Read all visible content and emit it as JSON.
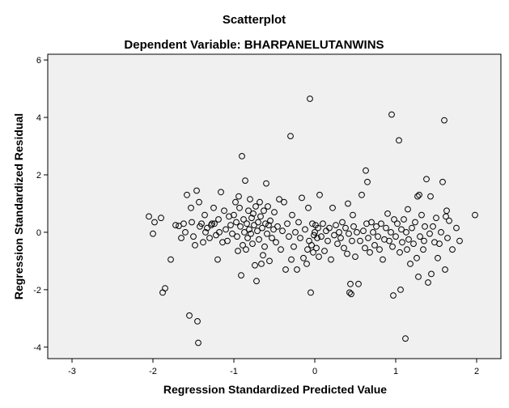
{
  "chart_data": {
    "type": "scatter",
    "title": "Scatterplot",
    "subtitle": "Dependent Variable: BHARPANELUTANWINS",
    "xlabel": "Regression Standardized Predicted Value",
    "ylabel": "Regression Standardized Residual",
    "xlim": [
      -3.3,
      2.3
    ],
    "ylim": [
      -4.4,
      6.2
    ],
    "xticks": [
      -3,
      -2,
      -1,
      0,
      1,
      2
    ],
    "yticks": [
      -4,
      -2,
      0,
      2,
      4,
      6
    ],
    "grid": false,
    "legend": "none",
    "colors": {
      "plot_background": "#f0f0f0",
      "plot_border": "#000000",
      "marker_stroke": "#000000"
    },
    "points": [
      [
        -2.05,
        0.55
      ],
      [
        -2.0,
        -0.05
      ],
      [
        -1.98,
        0.35
      ],
      [
        -1.9,
        0.5
      ],
      [
        -1.88,
        -2.1
      ],
      [
        -1.85,
        -1.95
      ],
      [
        -1.78,
        -0.95
      ],
      [
        -1.72,
        0.25
      ],
      [
        -1.68,
        0.22
      ],
      [
        -1.65,
        -0.2
      ],
      [
        -1.62,
        0.3
      ],
      [
        -1.6,
        0.0
      ],
      [
        -1.58,
        1.3
      ],
      [
        -1.55,
        -2.9
      ],
      [
        -1.53,
        0.85
      ],
      [
        -1.52,
        0.35
      ],
      [
        -1.5,
        -0.15
      ],
      [
        -1.48,
        -0.45
      ],
      [
        -1.46,
        1.45
      ],
      [
        -1.45,
        -3.1
      ],
      [
        -1.44,
        -3.85
      ],
      [
        -1.43,
        1.05
      ],
      [
        -1.42,
        0.2
      ],
      [
        -1.4,
        0.3
      ],
      [
        -1.38,
        -0.35
      ],
      [
        -1.36,
        0.6
      ],
      [
        -1.35,
        0.0
      ],
      [
        -1.33,
        0.15
      ],
      [
        -1.3,
        -0.2
      ],
      [
        -1.28,
        0.25
      ],
      [
        -1.27,
        0.3
      ],
      [
        -1.25,
        0.85
      ],
      [
        -1.24,
        0.3
      ],
      [
        -1.22,
        -0.1
      ],
      [
        -1.2,
        -0.95
      ],
      [
        -1.19,
        0.45
      ],
      [
        -1.18,
        0.0
      ],
      [
        -1.16,
        1.4
      ],
      [
        -1.14,
        -0.35
      ],
      [
        -1.12,
        0.75
      ],
      [
        -1.1,
        0.1
      ],
      [
        -1.08,
        -0.3
      ],
      [
        -1.06,
        0.55
      ],
      [
        -1.04,
        0.25
      ],
      [
        -1.02,
        -0.05
      ],
      [
        -1.0,
        0.6
      ],
      [
        -0.98,
        1.05
      ],
      [
        -0.97,
        0.35
      ],
      [
        -0.96,
        -0.15
      ],
      [
        -0.95,
        -0.65
      ],
      [
        -0.94,
        1.25
      ],
      [
        -0.93,
        0.85
      ],
      [
        -0.92,
        0.2
      ],
      [
        -0.91,
        -1.5
      ],
      [
        -0.9,
        2.65
      ],
      [
        -0.89,
        -0.45
      ],
      [
        -0.88,
        0.45
      ],
      [
        -0.87,
        0.0
      ],
      [
        -0.86,
        1.8
      ],
      [
        -0.85,
        -0.6
      ],
      [
        -0.84,
        0.3
      ],
      [
        -0.83,
        -0.2
      ],
      [
        -0.82,
        0.75
      ],
      [
        -0.81,
        0.1
      ],
      [
        -0.8,
        1.15
      ],
      [
        -0.79,
        -0.05
      ],
      [
        -0.78,
        0.5
      ],
      [
        -0.77,
        -0.4
      ],
      [
        -0.76,
        0.65
      ],
      [
        -0.75,
        0.25
      ],
      [
        -0.74,
        -1.15
      ],
      [
        -0.73,
        0.9
      ],
      [
        -0.72,
        -1.7
      ],
      [
        -0.71,
        0.05
      ],
      [
        -0.7,
        0.35
      ],
      [
        -0.69,
        -0.25
      ],
      [
        -0.68,
        1.05
      ],
      [
        -0.67,
        0.55
      ],
      [
        -0.66,
        -1.1
      ],
      [
        -0.65,
        0.15
      ],
      [
        -0.64,
        -0.8
      ],
      [
        -0.63,
        0.75
      ],
      [
        -0.62,
        -0.5
      ],
      [
        -0.61,
        0.3
      ],
      [
        -0.6,
        1.7
      ],
      [
        -0.59,
        -0.05
      ],
      [
        -0.58,
        0.9
      ],
      [
        -0.57,
        0.25
      ],
      [
        -0.56,
        -1.0
      ],
      [
        -0.55,
        0.4
      ],
      [
        -0.53,
        -0.2
      ],
      [
        -0.51,
        0.1
      ],
      [
        -0.5,
        0.7
      ],
      [
        -0.48,
        -0.35
      ],
      [
        -0.46,
        0.2
      ],
      [
        -0.44,
        1.15
      ],
      [
        -0.42,
        -0.6
      ],
      [
        -0.4,
        0.05
      ],
      [
        -0.38,
        1.05
      ],
      [
        -0.36,
        -1.3
      ],
      [
        -0.34,
        0.3
      ],
      [
        -0.32,
        -0.15
      ],
      [
        -0.3,
        3.35
      ],
      [
        -0.29,
        -0.95
      ],
      [
        -0.28,
        0.6
      ],
      [
        -0.26,
        -0.5
      ],
      [
        -0.24,
        0.0
      ],
      [
        -0.22,
        -1.3
      ],
      [
        -0.2,
        0.35
      ],
      [
        -0.18,
        -0.2
      ],
      [
        -0.16,
        1.2
      ],
      [
        -0.14,
        -0.9
      ],
      [
        -0.12,
        0.1
      ],
      [
        -0.1,
        -1.1
      ],
      [
        -0.09,
        -0.6
      ],
      [
        -0.08,
        0.85
      ],
      [
        -0.07,
        -0.3
      ],
      [
        -0.06,
        4.65
      ],
      [
        -0.05,
        -2.1
      ],
      [
        -0.04,
        -0.45
      ],
      [
        -0.03,
        0.3
      ],
      [
        -0.02,
        -0.7
      ],
      [
        -0.01,
        -0.1
      ],
      [
        0.0,
        0.0
      ],
      [
        0.01,
        0.25
      ],
      [
        0.02,
        -0.55
      ],
      [
        0.03,
        -0.2
      ],
      [
        0.04,
        0.15
      ],
      [
        0.05,
        -0.85
      ],
      [
        0.06,
        1.3
      ],
      [
        0.08,
        -0.15
      ],
      [
        0.1,
        0.3
      ],
      [
        0.12,
        -0.65
      ],
      [
        0.14,
        0.05
      ],
      [
        0.16,
        -0.3
      ],
      [
        0.18,
        0.15
      ],
      [
        0.2,
        -0.95
      ],
      [
        0.22,
        0.85
      ],
      [
        0.24,
        -0.1
      ],
      [
        0.26,
        0.25
      ],
      [
        0.28,
        -0.4
      ],
      [
        0.3,
        0.0
      ],
      [
        0.32,
        -0.2
      ],
      [
        0.34,
        0.35
      ],
      [
        0.36,
        -0.55
      ],
      [
        0.38,
        0.15
      ],
      [
        0.4,
        -0.75
      ],
      [
        0.41,
        1.0
      ],
      [
        0.42,
        -0.05
      ],
      [
        0.43,
        -2.1
      ],
      [
        0.44,
        -1.8
      ],
      [
        0.45,
        -2.15
      ],
      [
        0.46,
        -0.3
      ],
      [
        0.47,
        0.6
      ],
      [
        0.48,
        0.2
      ],
      [
        0.5,
        -0.85
      ],
      [
        0.52,
        0.0
      ],
      [
        0.54,
        -1.8
      ],
      [
        0.56,
        -0.3
      ],
      [
        0.58,
        1.3
      ],
      [
        0.6,
        0.05
      ],
      [
        0.62,
        -0.55
      ],
      [
        0.63,
        2.15
      ],
      [
        0.64,
        0.3
      ],
      [
        0.65,
        1.75
      ],
      [
        0.66,
        -0.2
      ],
      [
        0.68,
        -0.7
      ],
      [
        0.7,
        0.35
      ],
      [
        0.72,
        0.0
      ],
      [
        0.74,
        -0.45
      ],
      [
        0.76,
        0.2
      ],
      [
        0.78,
        -0.15
      ],
      [
        0.8,
        -0.6
      ],
      [
        0.82,
        0.3
      ],
      [
        0.84,
        -0.95
      ],
      [
        0.86,
        -0.25
      ],
      [
        0.88,
        0.15
      ],
      [
        0.9,
        0.65
      ],
      [
        0.92,
        -0.3
      ],
      [
        0.94,
        0.0
      ],
      [
        0.95,
        4.1
      ],
      [
        0.96,
        -0.5
      ],
      [
        0.97,
        -2.2
      ],
      [
        0.98,
        0.45
      ],
      [
        1.0,
        -0.15
      ],
      [
        1.02,
        0.3
      ],
      [
        1.04,
        3.2
      ],
      [
        1.05,
        -0.7
      ],
      [
        1.06,
        -2.0
      ],
      [
        1.07,
        0.1
      ],
      [
        1.08,
        -0.35
      ],
      [
        1.1,
        0.45
      ],
      [
        1.12,
        -3.7
      ],
      [
        1.13,
        0.0
      ],
      [
        1.14,
        -0.6
      ],
      [
        1.15,
        0.8
      ],
      [
        1.16,
        -0.25
      ],
      [
        1.18,
        -1.1
      ],
      [
        1.2,
        0.15
      ],
      [
        1.22,
        -0.4
      ],
      [
        1.24,
        0.35
      ],
      [
        1.26,
        -0.9
      ],
      [
        1.27,
        1.25
      ],
      [
        1.28,
        -1.55
      ],
      [
        1.29,
        1.3
      ],
      [
        1.3,
        -0.15
      ],
      [
        1.32,
        0.6
      ],
      [
        1.34,
        -0.6
      ],
      [
        1.35,
        -0.3
      ],
      [
        1.36,
        0.2
      ],
      [
        1.38,
        1.85
      ],
      [
        1.4,
        -1.75
      ],
      [
        1.42,
        -0.05
      ],
      [
        1.43,
        1.25
      ],
      [
        1.44,
        -1.45
      ],
      [
        1.46,
        0.2
      ],
      [
        1.48,
        -0.35
      ],
      [
        1.5,
        0.5
      ],
      [
        1.52,
        -0.9
      ],
      [
        1.54,
        -0.4
      ],
      [
        1.56,
        0.0
      ],
      [
        1.58,
        1.75
      ],
      [
        1.6,
        3.9
      ],
      [
        1.61,
        -1.3
      ],
      [
        1.62,
        0.55
      ],
      [
        1.63,
        0.75
      ],
      [
        1.64,
        -0.2
      ],
      [
        1.66,
        0.4
      ],
      [
        1.7,
        -0.6
      ],
      [
        1.75,
        0.15
      ],
      [
        1.79,
        -0.3
      ],
      [
        1.98,
        0.6
      ]
    ]
  }
}
